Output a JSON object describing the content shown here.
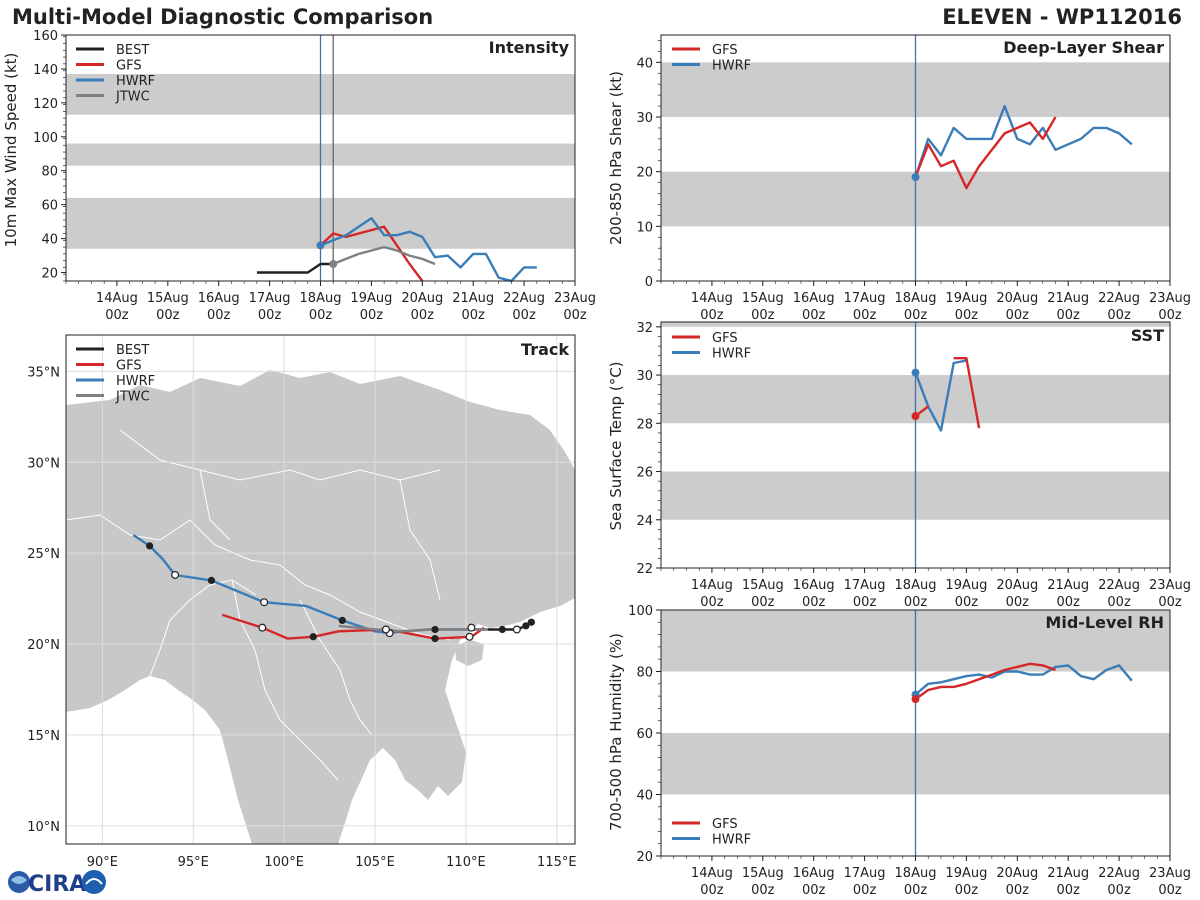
{
  "header": {
    "title": "Multi-Model Diagnostic Comparison",
    "storm": "ELEVEN - WP112016"
  },
  "logo": {
    "text": "CIRA",
    "alt": "CIRA logo"
  },
  "colors": {
    "BEST": "#222222",
    "GFS": "#d62728",
    "HWRF": "#3a7db8",
    "JTWC": "#808080",
    "band": "#cccccc",
    "land": "#c8c8c8",
    "border": "#ffffff",
    "vline": "#4a6fa5"
  },
  "chart_data": [
    {
      "id": "intensity",
      "type": "line",
      "title": "Intensity",
      "ylabel": "10m Max Wind Speed (kt)",
      "xlim": [
        0,
        10
      ],
      "ylim": [
        15,
        160
      ],
      "yticks": [
        20,
        40,
        60,
        80,
        100,
        120,
        140,
        160
      ],
      "xticks": [
        {
          "x": 1,
          "l1": "14Aug",
          "l2": "00z"
        },
        {
          "x": 2,
          "l1": "15Aug",
          "l2": "00z"
        },
        {
          "x": 3,
          "l1": "16Aug",
          "l2": "00z"
        },
        {
          "x": 4,
          "l1": "17Aug",
          "l2": "00z"
        },
        {
          "x": 5,
          "l1": "18Aug",
          "l2": "00z"
        },
        {
          "x": 6,
          "l1": "19Aug",
          "l2": "00z"
        },
        {
          "x": 7,
          "l1": "20Aug",
          "l2": "00z"
        },
        {
          "x": 8,
          "l1": "21Aug",
          "l2": "00z"
        },
        {
          "x": 9,
          "l1": "22Aug",
          "l2": "00z"
        },
        {
          "x": 10,
          "l1": "23Aug",
          "l2": "00z"
        }
      ],
      "bands": [
        [
          34,
          64
        ],
        [
          83,
          96
        ],
        [
          113,
          137
        ]
      ],
      "vlines": [
        {
          "x": 5.0,
          "color": "#4a6fa5"
        },
        {
          "x": 5.25,
          "color": "#666666"
        }
      ],
      "legend": [
        "BEST",
        "GFS",
        "HWRF",
        "JTWC"
      ],
      "series": [
        {
          "name": "BEST",
          "x": [
            3.75,
            4.0,
            4.25,
            4.5,
            4.75,
            5.0,
            5.25
          ],
          "y": [
            20,
            20,
            20,
            20,
            20,
            25,
            25
          ]
        },
        {
          "name": "GFS",
          "x": [
            5.0,
            5.25,
            5.5,
            5.75,
            6.0,
            6.25,
            6.5,
            6.75,
            7.0
          ],
          "y": [
            36,
            43,
            41,
            43,
            45,
            47,
            36,
            25,
            15
          ]
        },
        {
          "name": "HWRF",
          "x": [
            5.0,
            5.25,
            5.5,
            5.75,
            6.0,
            6.25,
            6.5,
            6.75,
            7.0,
            7.25,
            7.5,
            7.75,
            8.0,
            8.25,
            8.5,
            8.75,
            9.0,
            9.25
          ],
          "y": [
            36,
            39,
            42,
            47,
            52,
            42,
            42,
            44,
            41,
            29,
            30,
            23,
            31,
            31,
            17,
            15,
            23,
            23
          ]
        },
        {
          "name": "JTWC",
          "x": [
            5.25,
            5.5,
            5.75,
            6.0,
            6.25,
            6.5,
            6.75,
            7.0,
            7.25
          ],
          "y": [
            25,
            28,
            31,
            33,
            35,
            33,
            30,
            28,
            25
          ]
        }
      ],
      "markers": [
        {
          "series": "HWRF",
          "x": 5.0,
          "y": 36
        },
        {
          "series": "JTWC",
          "x": 5.25,
          "y": 25
        }
      ]
    },
    {
      "id": "shear",
      "type": "line",
      "title": "Deep-Layer Shear",
      "ylabel": "200-850 hPa Shear (kt)",
      "xlim": [
        0,
        10
      ],
      "ylim": [
        0,
        45
      ],
      "yticks": [
        0,
        10,
        20,
        30,
        40
      ],
      "bands": [
        [
          10,
          20
        ],
        [
          30,
          40
        ]
      ],
      "vlines": [
        {
          "x": 5.0,
          "color": "#4a6fa5"
        }
      ],
      "legend": [
        "GFS",
        "HWRF"
      ],
      "series": [
        {
          "name": "HWRF",
          "x": [
            5.0,
            5.25,
            5.5,
            5.75,
            6.0,
            6.25,
            6.5,
            6.75,
            7.0,
            7.25,
            7.5,
            7.75,
            8.0,
            8.25,
            8.5,
            8.75,
            9.0,
            9.25
          ],
          "y": [
            19,
            26,
            23,
            28,
            26,
            26,
            26,
            32,
            26,
            25,
            28,
            24,
            25,
            26,
            28,
            28,
            27,
            25
          ]
        },
        {
          "name": "GFS",
          "x": [
            5.0,
            5.25,
            5.5,
            5.75,
            6.0,
            6.25,
            6.5,
            6.75,
            7.0,
            7.25,
            7.5,
            7.75
          ],
          "y": [
            19,
            25,
            21,
            22,
            17,
            21,
            24,
            27,
            28,
            29,
            26,
            30
          ]
        }
      ],
      "markers": [
        {
          "series": "HWRF",
          "x": 5.0,
          "y": 19
        }
      ]
    },
    {
      "id": "sst",
      "type": "line",
      "title": "SST",
      "ylabel": "Sea Surface Temp (°C)",
      "xlim": [
        0,
        10
      ],
      "ylim": [
        22,
        32.2
      ],
      "yticks": [
        22,
        24,
        26,
        28,
        30,
        32
      ],
      "bands": [
        [
          24,
          26
        ],
        [
          28,
          30
        ],
        [
          32,
          32.2
        ]
      ],
      "vlines": [
        {
          "x": 5.0,
          "color": "#4a6fa5"
        }
      ],
      "legend": [
        "GFS",
        "HWRF"
      ],
      "series": [
        {
          "name": "HWRF",
          "x": [
            5.0,
            5.25,
            5.5,
            5.75,
            6.0
          ],
          "y": [
            30.1,
            28.7,
            27.7,
            30.5,
            30.6
          ]
        },
        {
          "name": "GFS",
          "x": [
            5.0,
            5.25
          ],
          "y": [
            28.3,
            28.7
          ]
        },
        {
          "name": "GFS",
          "x": [
            5.75,
            6.0,
            6.25
          ],
          "y": [
            30.7,
            30.7,
            27.8
          ]
        }
      ],
      "markers": [
        {
          "series": "HWRF",
          "x": 5.0,
          "y": 30.1
        },
        {
          "series": "GFS",
          "x": 5.0,
          "y": 28.3
        }
      ]
    },
    {
      "id": "rh",
      "type": "line",
      "title": "Mid-Level RH",
      "ylabel": "700-500 hPa Humidity (%)",
      "xlim": [
        0,
        10
      ],
      "ylim": [
        20,
        100
      ],
      "yticks": [
        20,
        40,
        60,
        80,
        100
      ],
      "bands": [
        [
          40,
          60
        ],
        [
          80,
          100
        ]
      ],
      "vlines": [
        {
          "x": 5.0,
          "color": "#4a6fa5"
        }
      ],
      "legend": [
        "GFS",
        "HWRF"
      ],
      "series": [
        {
          "name": "HWRF",
          "x": [
            5.0,
            5.25,
            5.5,
            5.75,
            6.0,
            6.25,
            6.5,
            6.75,
            7.0,
            7.25,
            7.5,
            7.75,
            8.0,
            8.25,
            8.5,
            8.75,
            9.0,
            9.25
          ],
          "y": [
            72.5,
            76,
            76.5,
            77.5,
            78.5,
            79,
            78,
            80,
            80,
            79,
            79,
            81.5,
            82,
            78.5,
            77.5,
            80.5,
            82,
            77
          ]
        },
        {
          "name": "GFS",
          "x": [
            5.0,
            5.25,
            5.5,
            5.75,
            6.0,
            6.25,
            6.5,
            6.75,
            7.0,
            7.25,
            7.5,
            7.75
          ],
          "y": [
            71,
            74,
            75,
            75,
            76,
            77.5,
            79,
            80.5,
            81.5,
            82.5,
            82,
            80.5
          ]
        }
      ],
      "markers": [
        {
          "series": "HWRF",
          "x": 5.0,
          "y": 72.5
        },
        {
          "series": "GFS",
          "x": 5.0,
          "y": 71
        }
      ]
    },
    {
      "id": "track",
      "type": "scatter",
      "title": "Track",
      "xlim": [
        88,
        116
      ],
      "ylim": [
        9,
        37
      ],
      "xticks": [
        90,
        95,
        100,
        105,
        110,
        115
      ],
      "xticklabels": [
        "90°E",
        "95°E",
        "100°E",
        "105°E",
        "110°E",
        "115°E"
      ],
      "yticks": [
        10,
        15,
        20,
        25,
        30,
        35
      ],
      "yticklabels": [
        "10°N",
        "15°N",
        "20°N",
        "25°N",
        "30°N",
        "35°N"
      ],
      "legend": [
        "BEST",
        "GFS",
        "HWRF",
        "JTWC"
      ],
      "series": [
        {
          "name": "BEST",
          "lon": [
            113.6,
            113.3,
            112.8,
            112.0,
            111.2
          ],
          "lat": [
            21.2,
            21.0,
            20.8,
            20.8,
            20.8
          ]
        },
        {
          "name": "HWRF",
          "lon": [
            111.2,
            110.2,
            109.0,
            108.0,
            106.5,
            105.8,
            105.0,
            103.2,
            101.2,
            98.9,
            96.0,
            94.0,
            93.3,
            92.6,
            91.7
          ],
          "lat": [
            20.8,
            20.8,
            20.8,
            20.8,
            20.7,
            20.6,
            20.7,
            21.3,
            22.1,
            22.3,
            23.5,
            23.8,
            24.7,
            25.4,
            26.0
          ]
        },
        {
          "name": "GFS",
          "lon": [
            111.0,
            110.3,
            108.3,
            105.7,
            103.0,
            101.6,
            100.2,
            98.8,
            96.6
          ],
          "lat": [
            20.9,
            20.4,
            20.3,
            20.8,
            20.7,
            20.4,
            20.3,
            20.9,
            21.6
          ]
        },
        {
          "name": "JTWC",
          "lon": [
            111.2,
            109.5,
            108.0,
            106.5,
            105.0,
            104.0,
            103.0
          ],
          "lat": [
            20.8,
            20.8,
            20.8,
            20.7,
            20.8,
            20.9,
            21.0
          ]
        }
      ],
      "points_filled": [
        {
          "lon": 113.6,
          "lat": 21.2
        },
        {
          "lon": 113.3,
          "lat": 21.0
        },
        {
          "lon": 112.0,
          "lat": 20.8
        },
        {
          "lon": 108.3,
          "lat": 20.8
        },
        {
          "lon": 103.2,
          "lat": 21.3
        },
        {
          "lon": 96.0,
          "lat": 23.5
        },
        {
          "lon": 92.6,
          "lat": 25.4
        },
        {
          "lon": 108.3,
          "lat": 20.3
        },
        {
          "lon": 101.6,
          "lat": 20.4
        }
      ],
      "points_open": [
        {
          "lon": 112.8,
          "lat": 20.8
        },
        {
          "lon": 110.3,
          "lat": 20.9
        },
        {
          "lon": 110.2,
          "lat": 20.4
        },
        {
          "lon": 105.8,
          "lat": 20.6
        },
        {
          "lon": 105.6,
          "lat": 20.8
        },
        {
          "lon": 98.9,
          "lat": 22.3
        },
        {
          "lon": 94.0,
          "lat": 23.8
        },
        {
          "lon": 98.8,
          "lat": 20.9
        }
      ]
    }
  ]
}
